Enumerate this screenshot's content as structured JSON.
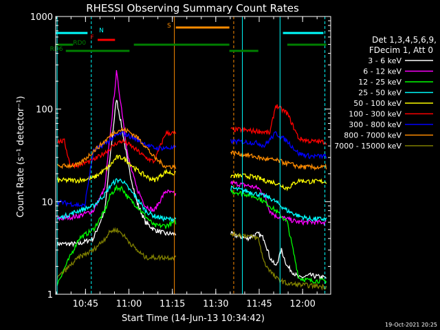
{
  "chart_data": {
    "type": "line",
    "title": "RHESSI Observing Summary Count Rates",
    "xlabel": "Start Time (14-Jun-13 10:34:42)",
    "ylabel": "Count Rate (s⁻¹ detector⁻¹)",
    "x_ticks": [
      "10:45",
      "11:00",
      "11:15",
      "11:30",
      "11:45",
      "12:00"
    ],
    "x_tick_minutes": [
      10.3,
      25.3,
      40.3,
      55.3,
      70.3,
      85.3
    ],
    "xlim_minutes": [
      0,
      95
    ],
    "y_scale": "log",
    "ylim": [
      1,
      1000
    ],
    "y_tick_labels": [
      "1",
      "10",
      "100",
      "1000"
    ],
    "legend_header": [
      "Det 1,3,4,5,6,9,",
      "FDecim 1, Att 0"
    ],
    "date_stamp": "19-Oct-2021 20:25",
    "flags": [
      {
        "label": "N",
        "color": "#00ffff"
      },
      {
        "label": "F",
        "color": "#ff0000"
      },
      {
        "label": "RD0",
        "color": "#008000"
      },
      {
        "label": "RD6",
        "color": "#008000"
      },
      {
        "label": "S",
        "color": "#ff8c00"
      }
    ],
    "gaps_minutes": [
      [
        0,
        0.5
      ],
      [
        41.5,
        60.5
      ],
      [
        93.5,
        95
      ]
    ],
    "series": [
      {
        "name": "3 - 6 keV",
        "color": "#ffffff",
        "values": [
          [
            0.5,
            3.5
          ],
          [
            8,
            3.5
          ],
          [
            13,
            4
          ],
          [
            17,
            8
          ],
          [
            19,
            35
          ],
          [
            21,
            130
          ],
          [
            23,
            60
          ],
          [
            25,
            25
          ],
          [
            28,
            10
          ],
          [
            31,
            6
          ],
          [
            34,
            5
          ],
          [
            38,
            4.5
          ],
          [
            41.5,
            4.5
          ],
          [
            60.5,
            4.5
          ],
          [
            66,
            4
          ],
          [
            70,
            4.5
          ],
          [
            72,
            4
          ],
          [
            74,
            2.5
          ],
          [
            76,
            2
          ],
          [
            78,
            3
          ],
          [
            80,
            2
          ],
          [
            84,
            1.5
          ],
          [
            88,
            1.6
          ],
          [
            93.5,
            1.5
          ]
        ]
      },
      {
        "name": "6 - 12 keV",
        "color": "#ff00ff",
        "values": [
          [
            0.5,
            6.5
          ],
          [
            8,
            7
          ],
          [
            13,
            8
          ],
          [
            17,
            14
          ],
          [
            19,
            60
          ],
          [
            21,
            250
          ],
          [
            23,
            90
          ],
          [
            25,
            30
          ],
          [
            28,
            14
          ],
          [
            31,
            9
          ],
          [
            34,
            8
          ],
          [
            38,
            13
          ],
          [
            41.5,
            12
          ],
          [
            60.5,
            16
          ],
          [
            66,
            15
          ],
          [
            70,
            14
          ],
          [
            72,
            12
          ],
          [
            74,
            8
          ],
          [
            76,
            7
          ],
          [
            80,
            6.5
          ],
          [
            84,
            6
          ],
          [
            88,
            6
          ],
          [
            93.5,
            6
          ]
        ]
      },
      {
        "name": "12 - 25 keV",
        "color": "#00ff00",
        "values": [
          [
            0.5,
            1.3
          ],
          [
            8,
            4
          ],
          [
            13,
            5
          ],
          [
            17,
            8
          ],
          [
            19,
            12
          ],
          [
            21,
            14
          ],
          [
            23,
            14
          ],
          [
            25,
            11
          ],
          [
            28,
            9
          ],
          [
            31,
            7
          ],
          [
            34,
            5.5
          ],
          [
            38,
            5.5
          ],
          [
            41.5,
            6
          ],
          [
            60.5,
            13
          ],
          [
            66,
            12
          ],
          [
            70,
            11
          ],
          [
            72,
            10
          ],
          [
            74,
            9
          ],
          [
            76,
            8
          ],
          [
            80,
            6
          ],
          [
            84,
            1.5
          ],
          [
            88,
            1.4
          ],
          [
            93.5,
            1.4
          ]
        ]
      },
      {
        "name": "25 - 50 keV",
        "color": "#00ffff",
        "values": [
          [
            0.5,
            6.5
          ],
          [
            8,
            8
          ],
          [
            13,
            9
          ],
          [
            17,
            12
          ],
          [
            19,
            15
          ],
          [
            21,
            17
          ],
          [
            23,
            17
          ],
          [
            25,
            14
          ],
          [
            28,
            11
          ],
          [
            31,
            8
          ],
          [
            34,
            7
          ],
          [
            38,
            6.5
          ],
          [
            41.5,
            6.5
          ],
          [
            60.5,
            14
          ],
          [
            66,
            13
          ],
          [
            70,
            12
          ],
          [
            72,
            11.5
          ],
          [
            74,
            11
          ],
          [
            76,
            10
          ],
          [
            80,
            8
          ],
          [
            84,
            7
          ],
          [
            88,
            6.5
          ],
          [
            93.5,
            6.5
          ]
        ]
      },
      {
        "name": "50 - 100 keV",
        "color": "#ffff00",
        "values": [
          [
            0.5,
            17
          ],
          [
            8,
            17
          ],
          [
            13,
            18
          ],
          [
            17,
            22
          ],
          [
            19,
            25
          ],
          [
            21,
            30
          ],
          [
            23,
            30
          ],
          [
            25,
            27
          ],
          [
            28,
            22
          ],
          [
            31,
            19
          ],
          [
            34,
            17
          ],
          [
            38,
            21
          ],
          [
            41.5,
            20
          ],
          [
            60.5,
            19
          ],
          [
            66,
            19
          ],
          [
            70,
            18
          ],
          [
            72,
            17
          ],
          [
            76,
            16
          ],
          [
            80,
            14
          ],
          [
            84,
            17
          ],
          [
            88,
            16.5
          ],
          [
            93.5,
            16.5
          ]
        ]
      },
      {
        "name": "100 - 300 keV",
        "color": "#ff0000",
        "values": [
          [
            0.5,
            45
          ],
          [
            3,
            45
          ],
          [
            5,
            25
          ],
          [
            8,
            25
          ],
          [
            13,
            28
          ],
          [
            17,
            34
          ],
          [
            19,
            38
          ],
          [
            21,
            43
          ],
          [
            23,
            45
          ],
          [
            25,
            42
          ],
          [
            28,
            36
          ],
          [
            31,
            30
          ],
          [
            34,
            27
          ],
          [
            38,
            55
          ],
          [
            41.5,
            55
          ],
          [
            60.5,
            60
          ],
          [
            64,
            60
          ],
          [
            68,
            58
          ],
          [
            70,
            58
          ],
          [
            74,
            55
          ],
          [
            76,
            110
          ],
          [
            80,
            90
          ],
          [
            84,
            48
          ],
          [
            88,
            45
          ],
          [
            93.5,
            44
          ]
        ]
      },
      {
        "name": "300 - 800 keV",
        "color": "#0000ff",
        "values": [
          [
            0.5,
            10
          ],
          [
            10,
            9
          ],
          [
            13,
            35
          ],
          [
            17,
            42
          ],
          [
            19,
            47
          ],
          [
            21,
            52
          ],
          [
            23,
            55
          ],
          [
            25,
            52
          ],
          [
            28,
            47
          ],
          [
            31,
            42
          ],
          [
            34,
            38
          ],
          [
            38,
            38
          ],
          [
            41.5,
            38
          ],
          [
            60.5,
            45
          ],
          [
            66,
            44
          ],
          [
            70,
            43
          ],
          [
            72,
            40
          ],
          [
            76,
            55
          ],
          [
            80,
            45
          ],
          [
            84,
            33
          ],
          [
            88,
            31
          ],
          [
            93.5,
            31
          ]
        ]
      },
      {
        "name": "800 - 7000 keV",
        "color": "#ff8c00",
        "values": [
          [
            0.5,
            24
          ],
          [
            8,
            25
          ],
          [
            13,
            35
          ],
          [
            17,
            45
          ],
          [
            19,
            52
          ],
          [
            21,
            58
          ],
          [
            23,
            60
          ],
          [
            25,
            58
          ],
          [
            28,
            50
          ],
          [
            31,
            40
          ],
          [
            34,
            30
          ],
          [
            38,
            24
          ],
          [
            41.5,
            24
          ],
          [
            60.5,
            34
          ],
          [
            66,
            32
          ],
          [
            70,
            30
          ],
          [
            72,
            29
          ],
          [
            76,
            28
          ],
          [
            80,
            26
          ],
          [
            84,
            24
          ],
          [
            88,
            23.5
          ],
          [
            93.5,
            23.5
          ]
        ]
      },
      {
        "name": "7000 - 15000 keV",
        "color": "#808000",
        "values": [
          [
            0.5,
            1.5
          ],
          [
            8,
            2.5
          ],
          [
            13,
            3
          ],
          [
            17,
            4
          ],
          [
            19,
            4.8
          ],
          [
            21,
            5
          ],
          [
            23,
            4.5
          ],
          [
            25,
            3.8
          ],
          [
            28,
            3
          ],
          [
            31,
            2.5
          ],
          [
            34,
            2.5
          ],
          [
            38,
            2.5
          ],
          [
            41.5,
            2.5
          ],
          [
            60.5,
            4.5
          ],
          [
            66,
            4.3
          ],
          [
            70,
            4
          ],
          [
            72,
            2.2
          ],
          [
            76,
            1.5
          ],
          [
            80,
            1.3
          ],
          [
            93.5,
            1.2
          ]
        ]
      }
    ]
  }
}
